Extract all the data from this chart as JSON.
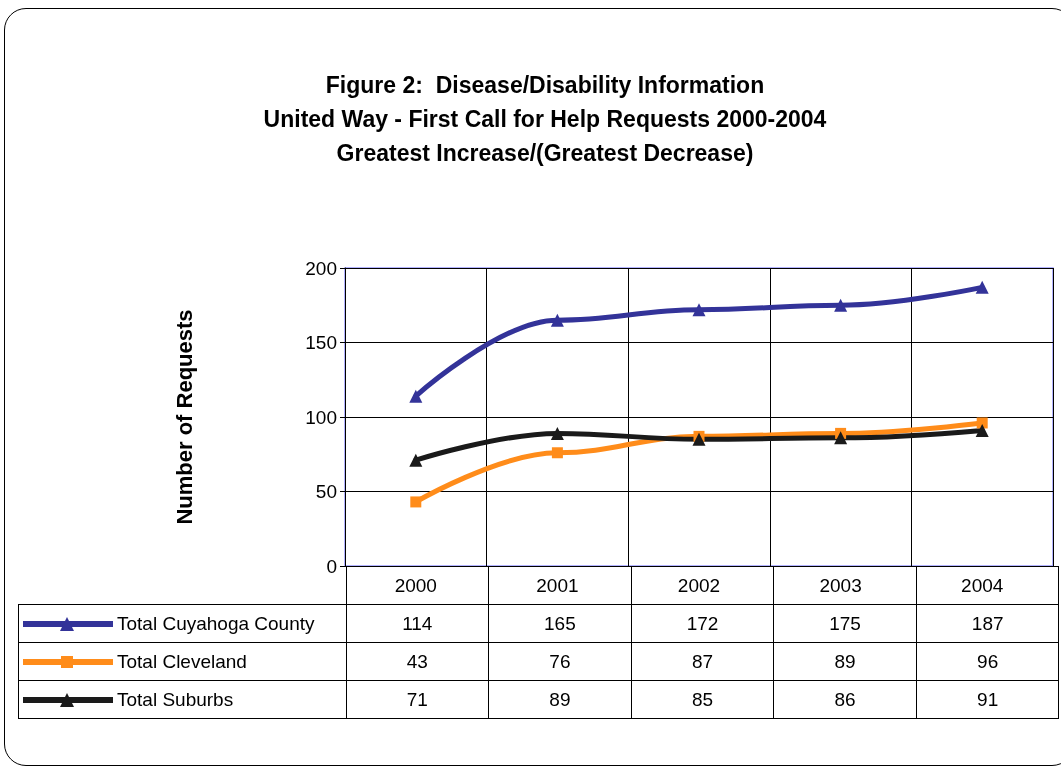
{
  "chart_data": {
    "type": "line",
    "title": "Figure 2:  Disease/Disability Information\nUnited Way - First Call for Help Requests 2000-2004\nGreatest Increase/(Greatest Decrease)",
    "ylabel": "Number of Requests",
    "categories": [
      "2000",
      "2001",
      "2002",
      "2003",
      "2004"
    ],
    "series": [
      {
        "name": "Total Cuyahoga County",
        "color": "#333399",
        "marker": "triangle",
        "values": [
          114,
          165,
          172,
          175,
          187
        ]
      },
      {
        "name": "Total Cleveland",
        "color": "#ff8c1a",
        "marker": "square",
        "values": [
          43,
          76,
          87,
          89,
          96
        ]
      },
      {
        "name": "Total Suburbs",
        "color": "#1a1a1a",
        "marker": "triangle",
        "values": [
          71,
          89,
          85,
          86,
          91
        ]
      }
    ],
    "ylim": [
      0,
      200
    ],
    "yticks": [
      0,
      50,
      100,
      150,
      200
    ],
    "grid": true,
    "legend": "bottom",
    "data_labels": true,
    "line_style": "solid"
  }
}
